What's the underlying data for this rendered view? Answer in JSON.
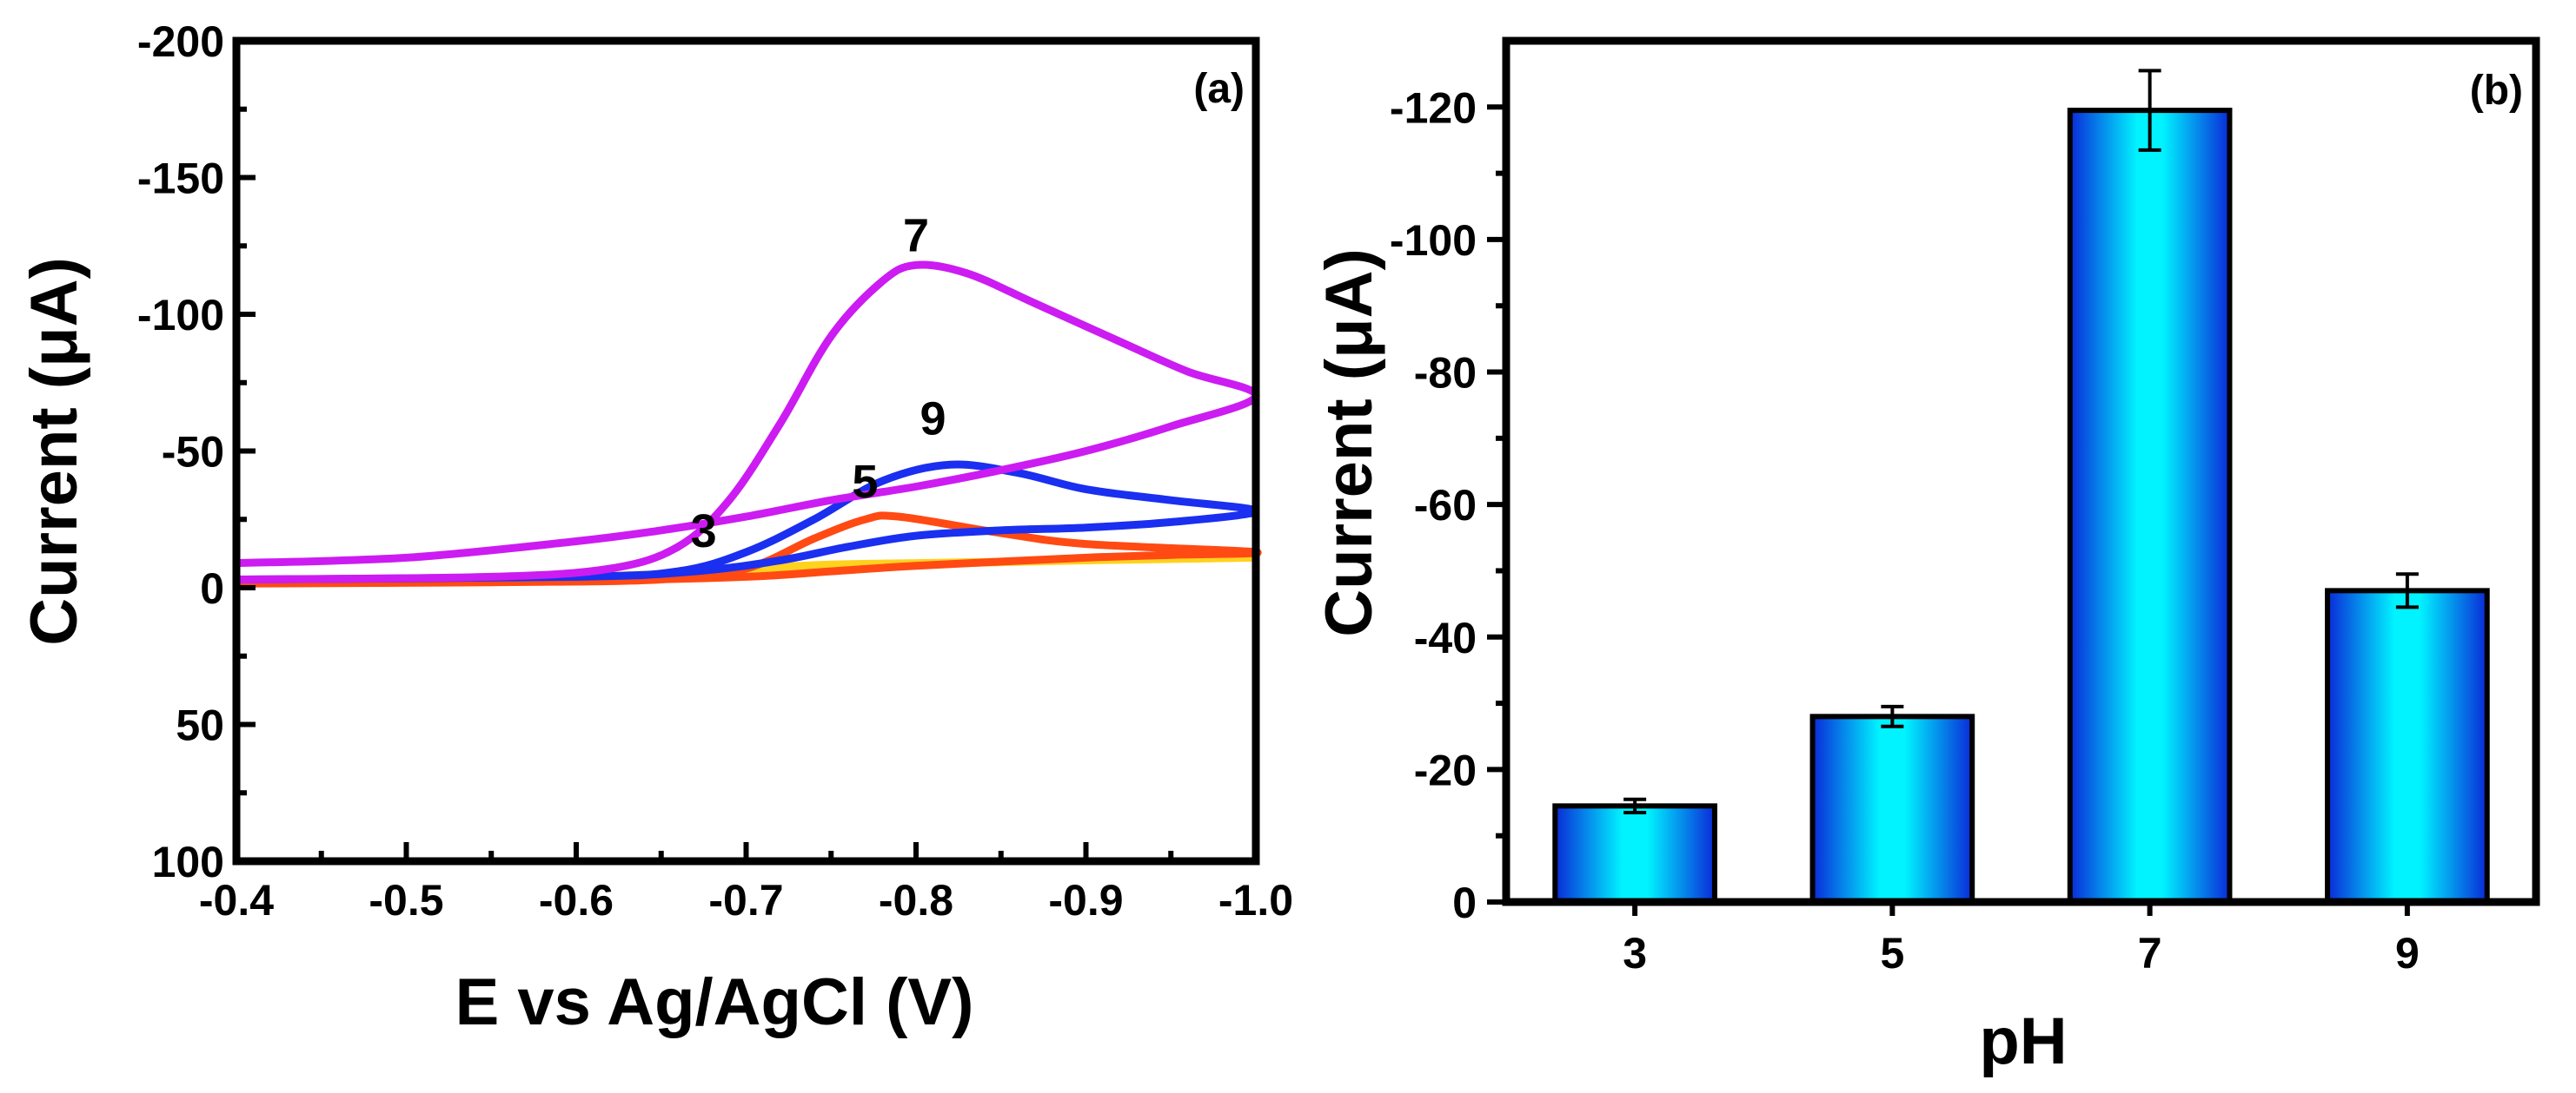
{
  "chart_data": [
    {
      "type": "line",
      "panel_label": "(a)",
      "xlabel": "E vs Ag/AgCl (V)",
      "ylabel": "Current (μA)",
      "xlim": [
        -0.4,
        -1.0
      ],
      "ylim": [
        100,
        -200
      ],
      "x_ticks": [
        -0.4,
        -0.5,
        -0.6,
        -0.7,
        -0.8,
        -0.9,
        -1.0
      ],
      "x_tick_labels": [
        "-0.4",
        "-0.5",
        "-0.6",
        "-0.7",
        "-0.8",
        "-0.9",
        "-1.0"
      ],
      "y_ticks": [
        -200,
        -150,
        -100,
        -50,
        0,
        50,
        100
      ],
      "y_tick_labels": [
        "-200",
        "-150",
        "-100",
        "-50",
        "0",
        "50",
        "100"
      ],
      "series": [
        {
          "name": "pH 3",
          "label": "3",
          "label_at": [
            -0.675,
            -15
          ],
          "color": "#ffd21f",
          "forward": [
            [
              -0.4,
              -2
            ],
            [
              -0.5,
              -2.5
            ],
            [
              -0.6,
              -3.5
            ],
            [
              -0.65,
              -5
            ],
            [
              -0.7,
              -7
            ],
            [
              -0.75,
              -8.5
            ],
            [
              -0.8,
              -9
            ],
            [
              -0.9,
              -10
            ],
            [
              -1.0,
              -11
            ]
          ],
          "reverse": [
            [
              -1.0,
              -11
            ],
            [
              -0.9,
              -10
            ],
            [
              -0.8,
              -8.5
            ],
            [
              -0.7,
              -6
            ],
            [
              -0.6,
              -4
            ],
            [
              -0.5,
              -3
            ],
            [
              -0.4,
              -2
            ]
          ]
        },
        {
          "name": "pH 5",
          "label": "5",
          "label_at": [
            -0.77,
            -33
          ],
          "color": "#ff4a14",
          "forward": [
            [
              -0.4,
              -1.5
            ],
            [
              -0.55,
              -2
            ],
            [
              -0.65,
              -3
            ],
            [
              -0.7,
              -7
            ],
            [
              -0.74,
              -18
            ],
            [
              -0.77,
              -25
            ],
            [
              -0.79,
              -26
            ],
            [
              -0.85,
              -20
            ],
            [
              -0.9,
              -16
            ],
            [
              -1.0,
              -13
            ]
          ],
          "reverse": [
            [
              -1.0,
              -13
            ],
            [
              -0.95,
              -12
            ],
            [
              -0.9,
              -11
            ],
            [
              -0.8,
              -8
            ],
            [
              -0.75,
              -6
            ],
            [
              -0.7,
              -4
            ],
            [
              -0.6,
              -2.5
            ],
            [
              -0.4,
              -1.5
            ]
          ]
        },
        {
          "name": "pH 9",
          "label": "9",
          "label_at": [
            -0.81,
            -56
          ],
          "color": "#1a2ff0",
          "forward": [
            [
              -0.4,
              -3
            ],
            [
              -0.6,
              -4
            ],
            [
              -0.66,
              -6
            ],
            [
              -0.7,
              -13
            ],
            [
              -0.74,
              -25
            ],
            [
              -0.78,
              -39
            ],
            [
              -0.82,
              -45
            ],
            [
              -0.86,
              -42
            ],
            [
              -0.9,
              -36
            ],
            [
              -0.95,
              -32
            ],
            [
              -1.0,
              -28
            ]
          ],
          "reverse": [
            [
              -1.0,
              -28
            ],
            [
              -0.95,
              -24
            ],
            [
              -0.9,
              -22
            ],
            [
              -0.85,
              -21
            ],
            [
              -0.8,
              -19
            ],
            [
              -0.76,
              -15
            ],
            [
              -0.72,
              -10
            ],
            [
              -0.67,
              -6
            ],
            [
              -0.6,
              -4
            ],
            [
              -0.4,
              -3
            ]
          ]
        },
        {
          "name": "pH 7",
          "label": "7",
          "label_at": [
            -0.8,
            -123
          ],
          "color": "#cc1cf2",
          "forward": [
            [
              -0.4,
              -3
            ],
            [
              -0.55,
              -4
            ],
            [
              -0.62,
              -7
            ],
            [
              -0.66,
              -15
            ],
            [
              -0.69,
              -32
            ],
            [
              -0.72,
              -60
            ],
            [
              -0.75,
              -92
            ],
            [
              -0.78,
              -112
            ],
            [
              -0.8,
              -118
            ],
            [
              -0.83,
              -115
            ],
            [
              -0.87,
              -104
            ],
            [
              -0.92,
              -90
            ],
            [
              -0.96,
              -79
            ],
            [
              -1.0,
              -70
            ]
          ],
          "reverse": [
            [
              -1.0,
              -70
            ],
            [
              -0.95,
              -59
            ],
            [
              -0.9,
              -50
            ],
            [
              -0.85,
              -43
            ],
            [
              -0.8,
              -37
            ],
            [
              -0.75,
              -32
            ],
            [
              -0.7,
              -26
            ],
            [
              -0.65,
              -21
            ],
            [
              -0.6,
              -17
            ],
            [
              -0.5,
              -11
            ],
            [
              -0.4,
              -9
            ]
          ]
        }
      ]
    },
    {
      "type": "bar",
      "panel_label": "(b)",
      "xlabel": "pH",
      "ylabel": "Current (μA)",
      "ylim": [
        0,
        -130
      ],
      "y_ticks": [
        0,
        -20,
        -40,
        -60,
        -80,
        -100,
        -120
      ],
      "y_tick_labels": [
        "0",
        "-20",
        "-40",
        "-60",
        "-80",
        "-100",
        "-120"
      ],
      "categories": [
        "3",
        "5",
        "7",
        "9"
      ],
      "values": [
        -14.5,
        -28,
        -119.5,
        -47
      ],
      "errors": [
        1,
        1.5,
        6,
        2.5
      ],
      "bar_colors": {
        "center": "#00f3ff",
        "edge": "#0a2ad8"
      }
    }
  ]
}
